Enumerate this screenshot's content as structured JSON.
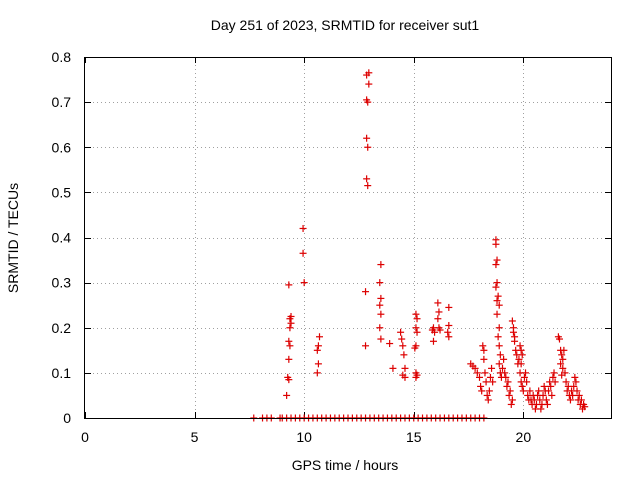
{
  "chart_data": {
    "type": "scatter",
    "title": "Day 251 of 2023, SRMTID for receiver sut1",
    "xlabel": "GPS time / hours",
    "ylabel": "SRMTID / TECUs",
    "xlim": [
      0,
      24
    ],
    "ylim": [
      0,
      0.8
    ],
    "xticks": [
      0,
      5,
      10,
      15,
      20
    ],
    "xtick_labels": [
      "0",
      "5",
      "10",
      "15",
      "20"
    ],
    "yticks": [
      0,
      0.1,
      0.2,
      0.3,
      0.4,
      0.5,
      0.6,
      0.7,
      0.8
    ],
    "ytick_labels": [
      "0",
      "0.1",
      "0.2",
      "0.3",
      "0.4",
      "0.5",
      "0.6",
      "0.7",
      "0.8"
    ],
    "grid": true,
    "marker": "plus",
    "marker_color": "#dd0000",
    "series": [
      {
        "name": "SRMTID",
        "points": [
          [
            7.7,
            0
          ],
          [
            8.1,
            0
          ],
          [
            8.3,
            0
          ],
          [
            8.5,
            0
          ],
          [
            8.9,
            0
          ],
          [
            9.0,
            0
          ],
          [
            9.2,
            0
          ],
          [
            9.4,
            0
          ],
          [
            9.6,
            0
          ],
          [
            9.8,
            0
          ],
          [
            10.0,
            0
          ],
          [
            10.2,
            0
          ],
          [
            10.4,
            0
          ],
          [
            10.6,
            0
          ],
          [
            10.8,
            0
          ],
          [
            11.0,
            0
          ],
          [
            11.2,
            0
          ],
          [
            11.4,
            0
          ],
          [
            11.6,
            0
          ],
          [
            11.8,
            0
          ],
          [
            12.0,
            0
          ],
          [
            12.2,
            0
          ],
          [
            12.4,
            0
          ],
          [
            12.6,
            0
          ],
          [
            12.8,
            0
          ],
          [
            13.0,
            0
          ],
          [
            13.2,
            0
          ],
          [
            13.4,
            0
          ],
          [
            13.6,
            0
          ],
          [
            13.8,
            0
          ],
          [
            14.0,
            0
          ],
          [
            14.2,
            0
          ],
          [
            14.4,
            0
          ],
          [
            14.6,
            0
          ],
          [
            14.8,
            0
          ],
          [
            15.0,
            0
          ],
          [
            15.2,
            0
          ],
          [
            15.4,
            0
          ],
          [
            15.6,
            0
          ],
          [
            15.8,
            0
          ],
          [
            16.0,
            0
          ],
          [
            16.2,
            0
          ],
          [
            16.4,
            0
          ],
          [
            16.6,
            0
          ],
          [
            16.8,
            0
          ],
          [
            17.0,
            0
          ],
          [
            17.2,
            0
          ],
          [
            17.4,
            0
          ],
          [
            17.6,
            0
          ],
          [
            17.8,
            0
          ],
          [
            18.0,
            0
          ],
          [
            18.2,
            0
          ],
          [
            9.2,
            0.05
          ],
          [
            9.25,
            0.09
          ],
          [
            9.3,
            0.085
          ],
          [
            9.3,
            0.13
          ],
          [
            9.35,
            0.16
          ],
          [
            9.3,
            0.17
          ],
          [
            9.35,
            0.2
          ],
          [
            9.4,
            0.21
          ],
          [
            9.35,
            0.22
          ],
          [
            9.4,
            0.225
          ],
          [
            9.3,
            0.295
          ],
          [
            9.95,
            0.42
          ],
          [
            9.95,
            0.365
          ],
          [
            10.0,
            0.3
          ],
          [
            10.6,
            0.1
          ],
          [
            10.65,
            0.12
          ],
          [
            10.6,
            0.15
          ],
          [
            10.65,
            0.16
          ],
          [
            10.7,
            0.18
          ],
          [
            12.8,
            0.16
          ],
          [
            12.8,
            0.28
          ],
          [
            12.85,
            0.53
          ],
          [
            12.9,
            0.515
          ],
          [
            12.9,
            0.6
          ],
          [
            12.85,
            0.62
          ],
          [
            12.85,
            0.705
          ],
          [
            12.9,
            0.7
          ],
          [
            12.95,
            0.74
          ],
          [
            12.85,
            0.76
          ],
          [
            12.95,
            0.765
          ],
          [
            13.5,
            0.34
          ],
          [
            13.45,
            0.3
          ],
          [
            13.5,
            0.265
          ],
          [
            13.45,
            0.25
          ],
          [
            13.5,
            0.23
          ],
          [
            13.45,
            0.2
          ],
          [
            13.5,
            0.175
          ],
          [
            13.9,
            0.165
          ],
          [
            14.05,
            0.11
          ],
          [
            14.4,
            0.19
          ],
          [
            14.45,
            0.175
          ],
          [
            14.5,
            0.16
          ],
          [
            14.55,
            0.14
          ],
          [
            14.6,
            0.11
          ],
          [
            14.5,
            0.095
          ],
          [
            14.6,
            0.09
          ],
          [
            15.1,
            0.23
          ],
          [
            15.15,
            0.22
          ],
          [
            15.1,
            0.2
          ],
          [
            15.15,
            0.19
          ],
          [
            15.1,
            0.16
          ],
          [
            15.05,
            0.155
          ],
          [
            15.1,
            0.1
          ],
          [
            15.15,
            0.095
          ],
          [
            15.1,
            0.09
          ],
          [
            15.9,
            0.2
          ],
          [
            15.85,
            0.195
          ],
          [
            15.95,
            0.19
          ],
          [
            15.9,
            0.17
          ],
          [
            16.1,
            0.255
          ],
          [
            16.15,
            0.235
          ],
          [
            16.1,
            0.22
          ],
          [
            16.15,
            0.2
          ],
          [
            16.2,
            0.195
          ],
          [
            16.6,
            0.245
          ],
          [
            16.6,
            0.205
          ],
          [
            16.55,
            0.19
          ],
          [
            16.6,
            0.18
          ],
          [
            17.6,
            0.12
          ],
          [
            17.7,
            0.115
          ],
          [
            17.8,
            0.11
          ],
          [
            17.9,
            0.1
          ],
          [
            18.0,
            0.09
          ],
          [
            18.05,
            0.07
          ],
          [
            18.1,
            0.06
          ],
          [
            18.15,
            0.16
          ],
          [
            18.2,
            0.15
          ],
          [
            18.2,
            0.13
          ],
          [
            18.25,
            0.1
          ],
          [
            18.3,
            0.08
          ],
          [
            18.35,
            0.05
          ],
          [
            18.4,
            0.04
          ],
          [
            18.45,
            0.06
          ],
          [
            18.5,
            0.09
          ],
          [
            18.55,
            0.11
          ],
          [
            18.6,
            0.08
          ],
          [
            18.75,
            0.395
          ],
          [
            18.75,
            0.385
          ],
          [
            18.8,
            0.35
          ],
          [
            18.75,
            0.34
          ],
          [
            18.8,
            0.3
          ],
          [
            18.75,
            0.29
          ],
          [
            18.85,
            0.27
          ],
          [
            18.8,
            0.26
          ],
          [
            18.9,
            0.25
          ],
          [
            18.8,
            0.23
          ],
          [
            18.9,
            0.2
          ],
          [
            18.85,
            0.18
          ],
          [
            18.9,
            0.16
          ],
          [
            18.95,
            0.14
          ],
          [
            18.9,
            0.12
          ],
          [
            18.95,
            0.1
          ],
          [
            19.0,
            0.09
          ],
          [
            19.05,
            0.11
          ],
          [
            19.1,
            0.13
          ],
          [
            19.15,
            0.1
          ],
          [
            19.2,
            0.09
          ],
          [
            19.25,
            0.07
          ],
          [
            19.3,
            0.08
          ],
          [
            19.35,
            0.05
          ],
          [
            19.4,
            0.06
          ],
          [
            19.45,
            0.03
          ],
          [
            19.5,
            0.04
          ],
          [
            19.5,
            0.215
          ],
          [
            19.55,
            0.2
          ],
          [
            19.55,
            0.19
          ],
          [
            19.6,
            0.18
          ],
          [
            19.6,
            0.17
          ],
          [
            19.65,
            0.15
          ],
          [
            19.7,
            0.14
          ],
          [
            19.75,
            0.12
          ],
          [
            19.8,
            0.13
          ],
          [
            19.85,
            0.16
          ],
          [
            19.9,
            0.15
          ],
          [
            19.95,
            0.14
          ],
          [
            19.9,
            0.12
          ],
          [
            19.85,
            0.1
          ],
          [
            19.9,
            0.08
          ],
          [
            19.95,
            0.07
          ],
          [
            20.0,
            0.06
          ],
          [
            20.05,
            0.09
          ],
          [
            20.1,
            0.1
          ],
          [
            20.15,
            0.08
          ],
          [
            20.2,
            0.05
          ],
          [
            20.25,
            0.04
          ],
          [
            20.3,
            0.06
          ],
          [
            20.35,
            0.04
          ],
          [
            20.4,
            0.03
          ],
          [
            20.45,
            0.05
          ],
          [
            20.5,
            0.04
          ],
          [
            20.55,
            0.02
          ],
          [
            20.6,
            0.03
          ],
          [
            20.65,
            0.05
          ],
          [
            20.7,
            0.06
          ],
          [
            20.75,
            0.04
          ],
          [
            20.8,
            0.02
          ],
          [
            20.85,
            0.03
          ],
          [
            20.9,
            0.05
          ],
          [
            20.95,
            0.07
          ],
          [
            21.0,
            0.06
          ],
          [
            21.05,
            0.04
          ],
          [
            21.1,
            0.03
          ],
          [
            21.15,
            0.06
          ],
          [
            21.2,
            0.08
          ],
          [
            21.25,
            0.07
          ],
          [
            21.3,
            0.05
          ],
          [
            21.35,
            0.09
          ],
          [
            21.4,
            0.1
          ],
          [
            21.45,
            0.08
          ],
          [
            21.6,
            0.18
          ],
          [
            21.65,
            0.175
          ],
          [
            21.7,
            0.15
          ],
          [
            21.75,
            0.14
          ],
          [
            21.7,
            0.12
          ],
          [
            21.8,
            0.11
          ],
          [
            21.75,
            0.095
          ],
          [
            21.85,
            0.15
          ],
          [
            21.8,
            0.13
          ],
          [
            21.9,
            0.1
          ],
          [
            21.95,
            0.08
          ],
          [
            22.0,
            0.06
          ],
          [
            22.05,
            0.07
          ],
          [
            22.1,
            0.05
          ],
          [
            22.15,
            0.04
          ],
          [
            22.2,
            0.06
          ],
          [
            22.25,
            0.05
          ],
          [
            22.3,
            0.07
          ],
          [
            22.35,
            0.09
          ],
          [
            22.4,
            0.08
          ],
          [
            22.45,
            0.06
          ],
          [
            22.5,
            0.04
          ],
          [
            22.55,
            0.05
          ],
          [
            22.6,
            0.03
          ],
          [
            22.65,
            0.04
          ],
          [
            22.7,
            0.02
          ],
          [
            22.75,
            0.03
          ],
          [
            22.8,
            0.025
          ]
        ]
      }
    ]
  }
}
